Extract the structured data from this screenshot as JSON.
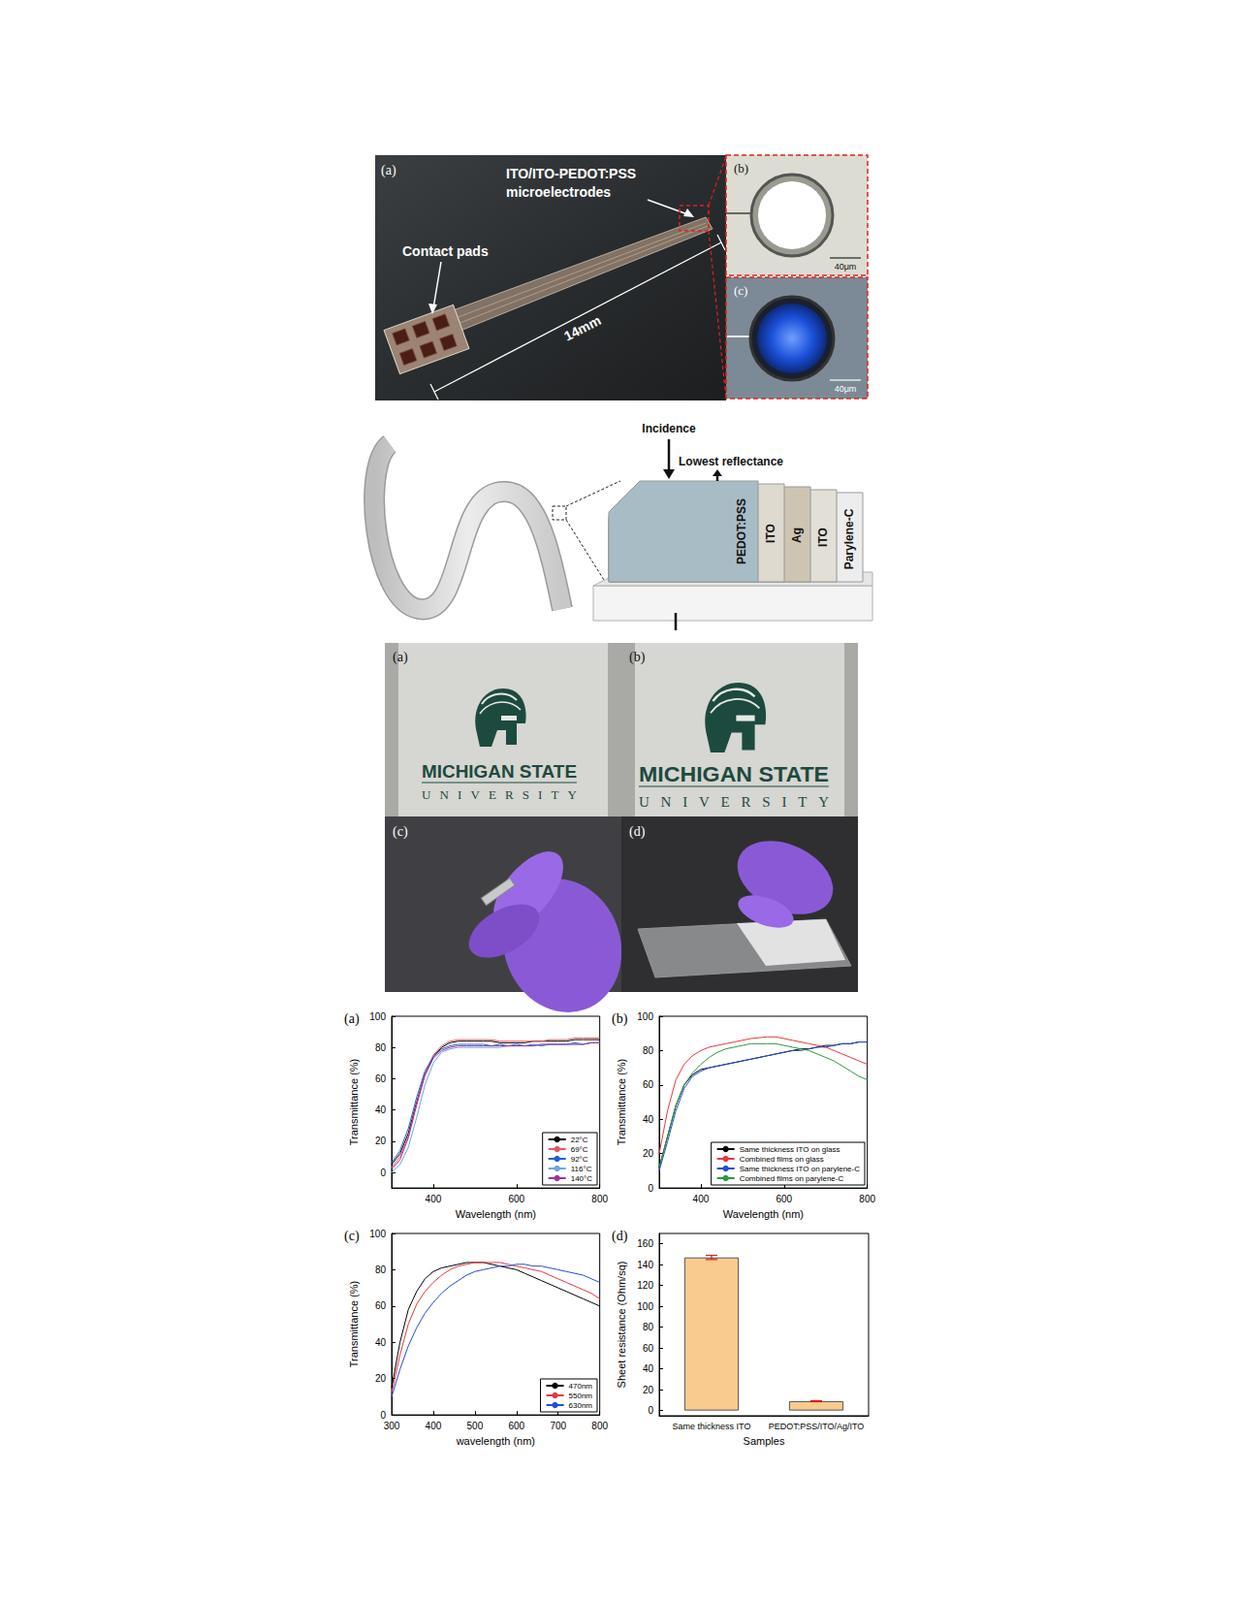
{
  "photo_microelectrodes": {
    "panels": [
      {
        "label": "(a)",
        "labels": [
          "ITO/ITO-PEDOT:PSS",
          "microelectrodes"
        ],
        "callout": "Contact pads",
        "length": "14mm"
      },
      {
        "label": "(b)",
        "scale_bar": "40μm"
      },
      {
        "label": "(c)",
        "scale_bar": "40μm"
      }
    ]
  },
  "diagram": {
    "incidence": "Incidence",
    "reflection": "Lowest reflectance",
    "layers": [
      "PEDOT:PSS",
      "ITO",
      "Ag",
      "ITO",
      "Parylene-C"
    ]
  },
  "photos": {
    "panels": [
      {
        "label": "(a)",
        "text": [
          "MICHIGAN STATE",
          "UNIVERSITY"
        ]
      },
      {
        "label": "(b)",
        "text": [
          "MICHIGAN STATE",
          "UNIVERSITY"
        ]
      },
      {
        "label": "(c)"
      },
      {
        "label": "(d)"
      }
    ]
  },
  "chart_data": [
    {
      "type": "line",
      "title": "(a)",
      "xlabel": "Wavelength (nm)",
      "ylabel": "Transmittance (%)",
      "xlim": [
        300,
        800
      ],
      "xticks": [
        400,
        600,
        800
      ],
      "ylim": [
        -10,
        100
      ],
      "yticks": [
        0,
        20,
        40,
        60,
        80,
        100
      ],
      "legend": "lower right",
      "x": [
        300,
        320,
        340,
        360,
        380,
        400,
        420,
        440,
        460,
        480,
        500,
        520,
        540,
        560,
        580,
        600,
        620,
        640,
        660,
        680,
        700,
        720,
        740,
        760,
        780,
        800
      ],
      "series": [
        {
          "name": "22°C",
          "color": "#000000",
          "values": [
            5,
            12,
            25,
            45,
            63,
            74,
            80,
            83,
            84,
            84,
            84,
            84,
            84,
            83,
            83,
            83,
            83,
            84,
            84,
            84,
            84,
            84,
            85,
            85,
            85,
            85
          ]
        },
        {
          "name": "69°C",
          "color": "#e8575f",
          "values": [
            3,
            10,
            23,
            44,
            63,
            75,
            81,
            84,
            85,
            85,
            85,
            85,
            85,
            84,
            84,
            84,
            84,
            84,
            84,
            85,
            85,
            85,
            86,
            86,
            86,
            86
          ]
        },
        {
          "name": "92°C",
          "color": "#1f5fd6",
          "values": [
            6,
            14,
            28,
            48,
            65,
            74,
            79,
            81,
            82,
            82,
            82,
            82,
            81,
            82,
            81,
            82,
            81,
            82,
            81,
            82,
            82,
            82,
            83,
            82,
            83,
            83
          ]
        },
        {
          "name": "116°C",
          "color": "#6ba6e0",
          "values": [
            0,
            5,
            16,
            35,
            56,
            70,
            77,
            79,
            80,
            80,
            80,
            80,
            80,
            80,
            81,
            81,
            81,
            81,
            82,
            82,
            82,
            82,
            82,
            82,
            83,
            83
          ]
        },
        {
          "name": "140°C",
          "color": "#a033a0",
          "values": [
            2,
            8,
            22,
            43,
            62,
            73,
            78,
            80,
            81,
            81,
            81,
            81,
            81,
            81,
            81,
            81,
            81,
            81,
            82,
            82,
            82,
            82,
            82,
            82,
            83,
            83
          ]
        }
      ]
    },
    {
      "type": "line",
      "title": "(b)",
      "xlabel": "Wavelength (nm)",
      "ylabel": "Transmittance (%)",
      "xlim": [
        300,
        800
      ],
      "xticks": [
        400,
        600,
        800
      ],
      "ylim": [
        0,
        100
      ],
      "yticks": [
        0,
        20,
        40,
        60,
        80,
        100
      ],
      "legend": "lower right",
      "x": [
        300,
        320,
        340,
        360,
        380,
        400,
        420,
        440,
        460,
        480,
        500,
        520,
        540,
        560,
        580,
        600,
        620,
        640,
        660,
        680,
        700,
        720,
        740,
        760,
        780,
        800
      ],
      "series": [
        {
          "name": "Same thickness ITO on glass",
          "color": "#000000",
          "values": [
            12,
            30,
            48,
            60,
            66,
            69,
            70,
            71,
            72,
            73,
            74,
            75,
            76,
            77,
            78,
            79,
            80,
            81,
            81,
            82,
            83,
            83,
            84,
            84,
            85,
            85
          ]
        },
        {
          "name": "Combined films on glass",
          "color": "#e8373f",
          "values": [
            20,
            45,
            63,
            72,
            77,
            80,
            82,
            83,
            84,
            85,
            86,
            87,
            87.5,
            88,
            88,
            87,
            86,
            85,
            84,
            83,
            82,
            80,
            78,
            76,
            74,
            72
          ]
        },
        {
          "name": "Same thickness ITO on parylene-C",
          "color": "#1f4fd6",
          "values": [
            10,
            27,
            45,
            58,
            65,
            68,
            70,
            71,
            72,
            73,
            74,
            75,
            76,
            77,
            78,
            79,
            80,
            80,
            81,
            82,
            82,
            83,
            84,
            84,
            85,
            85
          ]
        },
        {
          "name": "Combined films on parylene-C",
          "color": "#2a9a3a",
          "values": [
            12,
            30,
            48,
            60,
            67,
            72,
            76,
            79,
            81,
            82,
            83,
            84,
            84,
            84,
            84,
            83,
            82,
            81,
            80,
            78,
            76,
            74,
            71,
            68,
            65,
            63
          ]
        }
      ]
    },
    {
      "type": "line",
      "title": "(c)",
      "xlabel": "wavelength (nm)",
      "ylabel": "Transmittance (%)",
      "xlim": [
        300,
        800
      ],
      "xticks": [
        300,
        400,
        500,
        600,
        700,
        800
      ],
      "ylim": [
        0,
        100
      ],
      "yticks": [
        0,
        20,
        40,
        60,
        80,
        100
      ],
      "legend": "lower right",
      "x": [
        300,
        320,
        340,
        360,
        380,
        400,
        420,
        440,
        460,
        480,
        500,
        520,
        540,
        560,
        580,
        600,
        620,
        640,
        660,
        680,
        700,
        720,
        740,
        760,
        780,
        800
      ],
      "series": [
        {
          "name": "470nm",
          "color": "#000000",
          "values": [
            15,
            40,
            58,
            68,
            75,
            79,
            81,
            82,
            83,
            84,
            84,
            84,
            83,
            82,
            81,
            80,
            78,
            76,
            74,
            72,
            70,
            68,
            66,
            64,
            62,
            60
          ]
        },
        {
          "name": "550nm",
          "color": "#e8373f",
          "values": [
            12,
            33,
            50,
            61,
            68,
            73,
            77,
            80,
            82,
            83,
            84,
            84,
            84,
            84,
            83,
            82,
            81,
            80,
            79,
            77,
            75,
            73,
            71,
            69,
            67,
            64
          ]
        },
        {
          "name": "630nm",
          "color": "#1f4fd6",
          "values": [
            10,
            25,
            38,
            48,
            56,
            62,
            67,
            71,
            74,
            77,
            79,
            80,
            81,
            82,
            82,
            83,
            83,
            82,
            82,
            81,
            80,
            79,
            78,
            77,
            75,
            73
          ]
        }
      ]
    },
    {
      "type": "bar",
      "title": "(d)",
      "xlabel": "Samples",
      "ylabel": "Sheet resistance (Ohm/sq)",
      "categories": [
        "Same thickness ITO",
        "PEDOT:PSS/ITO/Ag/ITO"
      ],
      "values": [
        147,
        9
      ],
      "errors": [
        2,
        0.5
      ],
      "color": "#f9cb8f",
      "ylim": [
        -5,
        170
      ],
      "yticks": [
        0,
        20,
        40,
        60,
        80,
        100,
        120,
        140,
        160
      ]
    }
  ]
}
